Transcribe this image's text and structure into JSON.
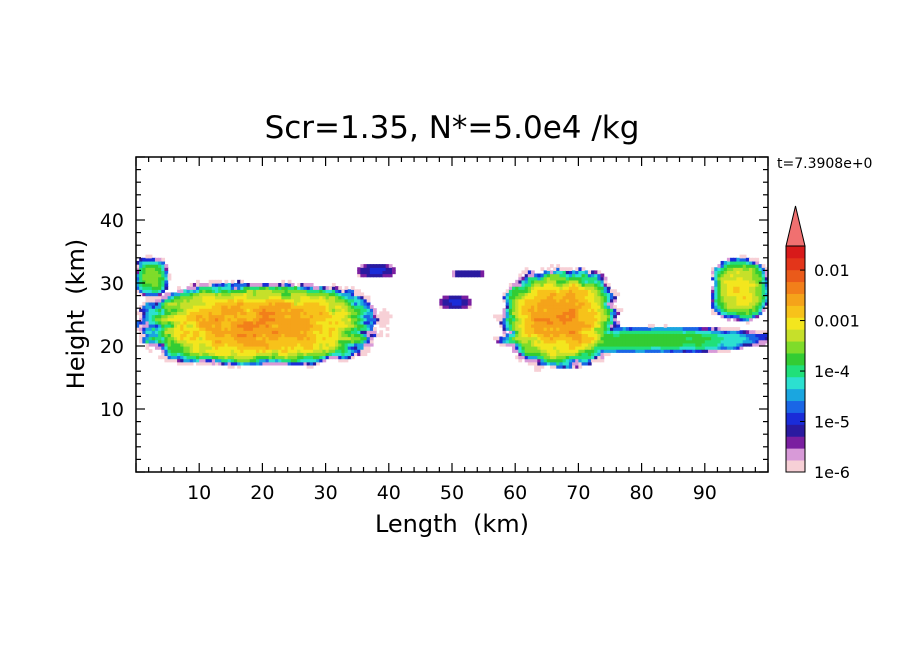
{
  "chart_data": {
    "type": "heatmap",
    "title": "Scr=1.35, N*=5.0e4 /kg",
    "time_label": "t=7.3908e+0",
    "xlabel": "Length  (km)",
    "ylabel": "Height  (km)",
    "xlim": [
      0,
      100
    ],
    "ylim": [
      0,
      50
    ],
    "xticks": [
      10,
      20,
      30,
      40,
      50,
      60,
      70,
      80,
      90
    ],
    "yticks": [
      10,
      20,
      30,
      40
    ],
    "colorbar": {
      "scale": "log",
      "range": [
        1e-06,
        0.03
      ],
      "tick_labels": [
        "0.01",
        "0.001",
        "1e-4",
        "1e-5",
        "1e-6"
      ],
      "tick_values": [
        0.01,
        0.001,
        0.0001,
        1e-05,
        1e-06
      ],
      "extend": "max",
      "colors": [
        "#f7d0d6",
        "#d89ad8",
        "#7a1fa0",
        "#2a1aa0",
        "#1a2cd8",
        "#1a66e6",
        "#1aa6e0",
        "#2ce0d0",
        "#20e07a",
        "#33cc33",
        "#7fdc2a",
        "#c6e02a",
        "#f3e61e",
        "#f7c21a",
        "#f5a31a",
        "#f27f1a",
        "#ea5a1a",
        "#e3351a",
        "#d81a1a"
      ],
      "extend_color": "#f07070"
    },
    "regions": [
      {
        "name": "left cloud",
        "x": [
          1,
          38
        ],
        "y": [
          17,
          30
        ],
        "peak": 0.003
      },
      {
        "name": "edge cloud left",
        "x": [
          0,
          5
        ],
        "y": [
          28,
          34
        ],
        "peak": 0.0003
      },
      {
        "name": "upper thin band",
        "x": [
          35,
          41
        ],
        "y": [
          31,
          33
        ],
        "peak": 1e-05
      },
      {
        "name": "small patch",
        "x": [
          48,
          53
        ],
        "y": [
          26,
          28
        ],
        "peak": 1e-05
      },
      {
        "name": "small patch 2",
        "x": [
          50,
          55
        ],
        "y": [
          31,
          32
        ],
        "peak": 1e-05
      },
      {
        "name": "right cloud",
        "x": [
          58,
          76
        ],
        "y": [
          17,
          32
        ],
        "peak": 0.003
      },
      {
        "name": "lower band",
        "x": [
          58,
          100
        ],
        "y": [
          19,
          23
        ],
        "peak": 0.0002
      },
      {
        "name": "edge cloud right",
        "x": [
          91,
          100
        ],
        "y": [
          24,
          34
        ],
        "peak": 0.001
      }
    ]
  }
}
